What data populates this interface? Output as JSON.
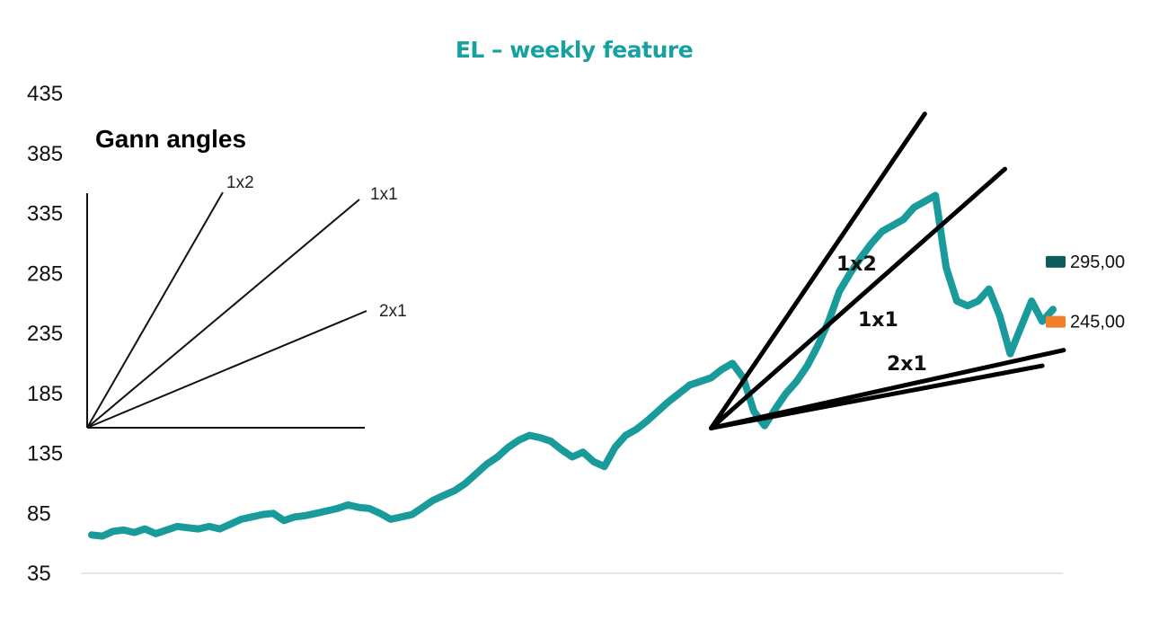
{
  "chart_data": {
    "type": "line",
    "title": "EL – weekly feature",
    "xlabel": "",
    "ylabel": "",
    "ylim": [
      35,
      435
    ],
    "yticks": [
      435,
      385,
      335,
      285,
      235,
      185,
      135,
      85,
      35
    ],
    "grid": false,
    "colors": {
      "price": "#1a9b9b",
      "fan_lines": "#000000",
      "marker_upper": "#0f5a5a",
      "marker_lower": "#f07f2a",
      "title": "#17a2a2"
    },
    "series": [
      {
        "type": "line",
        "x_index": [
          0,
          10,
          20,
          30,
          40,
          50,
          60,
          70,
          80,
          90,
          100,
          110,
          120,
          130,
          140,
          150,
          160,
          170,
          180,
          190,
          200,
          210,
          220,
          230,
          240,
          250,
          260,
          270,
          280,
          290,
          300,
          310,
          320,
          330,
          340,
          350,
          360,
          370,
          380,
          390,
          400,
          410,
          420,
          430,
          440,
          450,
          460,
          470,
          480,
          490,
          500,
          510,
          520,
          530,
          540,
          550,
          560,
          570,
          580,
          590,
          600,
          610,
          620,
          630,
          640,
          650,
          660,
          670,
          680,
          690,
          700,
          710,
          720,
          730,
          740,
          750,
          760,
          770,
          780,
          790,
          800,
          810,
          820,
          830,
          840,
          850,
          860,
          870,
          880,
          890,
          900
        ],
        "values": [
          67,
          66,
          70,
          71,
          69,
          72,
          68,
          71,
          74,
          73,
          72,
          74,
          72,
          76,
          80,
          82,
          84,
          85,
          79,
          82,
          83,
          85,
          87,
          89,
          92,
          90,
          89,
          85,
          80,
          82,
          84,
          90,
          96,
          100,
          104,
          110,
          118,
          126,
          132,
          140,
          146,
          150,
          148,
          145,
          138,
          132,
          136,
          128,
          124,
          140,
          150,
          155,
          162,
          170,
          178,
          185,
          192,
          195,
          198,
          205,
          210,
          198,
          170,
          158,
          172,
          185,
          195,
          208,
          225,
          245,
          270,
          285,
          298,
          310,
          320,
          325,
          330,
          340,
          345,
          350,
          290,
          262,
          258,
          262,
          272,
          250,
          218,
          240,
          262,
          245,
          255
        ]
      }
    ],
    "gann_fan": {
      "origin": {
        "x_index": 580,
        "value": 156
      },
      "lines": [
        {
          "label": "1x2",
          "end": {
            "x_index": 780,
            "value": 418
          }
        },
        {
          "label": "1x1",
          "end": {
            "x_index": 855,
            "value": 372
          }
        },
        {
          "label": "2x1",
          "end": {
            "x_index": 890,
            "value": 208
          }
        },
        {
          "label": "",
          "end": {
            "x_index": 910,
            "value": 221
          }
        }
      ]
    },
    "price_markers": [
      {
        "label": "295,00",
        "value": 295
      },
      {
        "label": "245,00",
        "value": 245
      }
    ]
  },
  "legend": {
    "title": "Gann angles",
    "labels": [
      "1x2",
      "1x1",
      "2x1"
    ]
  }
}
